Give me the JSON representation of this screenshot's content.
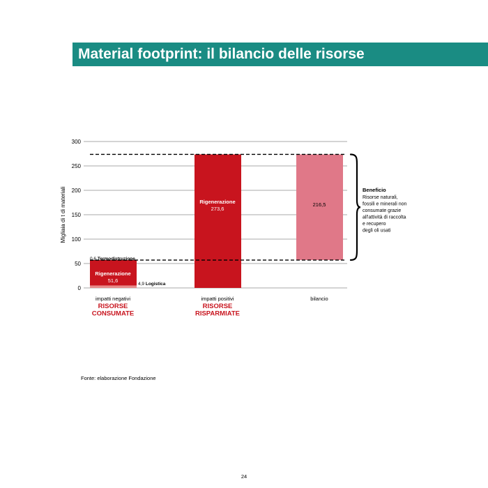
{
  "header": {
    "title": "Material footprint: il bilancio delle risorse"
  },
  "chart_data": {
    "type": "bar",
    "ylabel": "Migliaia di t di materiali",
    "ylim": [
      0,
      300
    ],
    "yticks": [
      0,
      50,
      100,
      150,
      200,
      250,
      300
    ],
    "grid": true,
    "groups": [
      {
        "label": "impatti negativi",
        "sublabel": "RISORSE CONSUMATE"
      },
      {
        "label": "impatti positivi",
        "sublabel": "RISORSE RISPARMIATE"
      },
      {
        "label": "bilancio",
        "sublabel": ""
      }
    ],
    "segments": [
      {
        "group": 0,
        "name": "Rigenerazione",
        "value": 51.6,
        "value_label": "51,6",
        "bottom": 4.9,
        "color": "#c8141e"
      },
      {
        "group": 0,
        "name": "Logistica",
        "value": 4.9,
        "value_label": "4,9",
        "bottom": 0,
        "color": "#e88a8a"
      },
      {
        "group": 0,
        "name": "Termodistruzione",
        "value": 0.6,
        "value_label": "0,6",
        "bottom": 56.5,
        "color": "#7a0c10"
      },
      {
        "group": 1,
        "name": "Rigenerazione",
        "value": 273.6,
        "value_label": "273,6",
        "bottom": 0,
        "color": "#c8141e"
      },
      {
        "group": 2,
        "name": "",
        "value": 216.5,
        "value_label": "216,5",
        "bottom": 57.1,
        "color": "#e07888"
      }
    ],
    "reference_lines": [
      57.1,
      273.6
    ],
    "annotation": {
      "title": "Beneficio",
      "lines": [
        "Risorse naturali,",
        "fossili e minerali non",
        "consumate grazie",
        "all'attività di raccolta",
        "e recupero",
        "degli oli usati"
      ]
    }
  },
  "footer": {
    "source": "Fonte: elaborazione Fondazione",
    "page_number": "24"
  }
}
